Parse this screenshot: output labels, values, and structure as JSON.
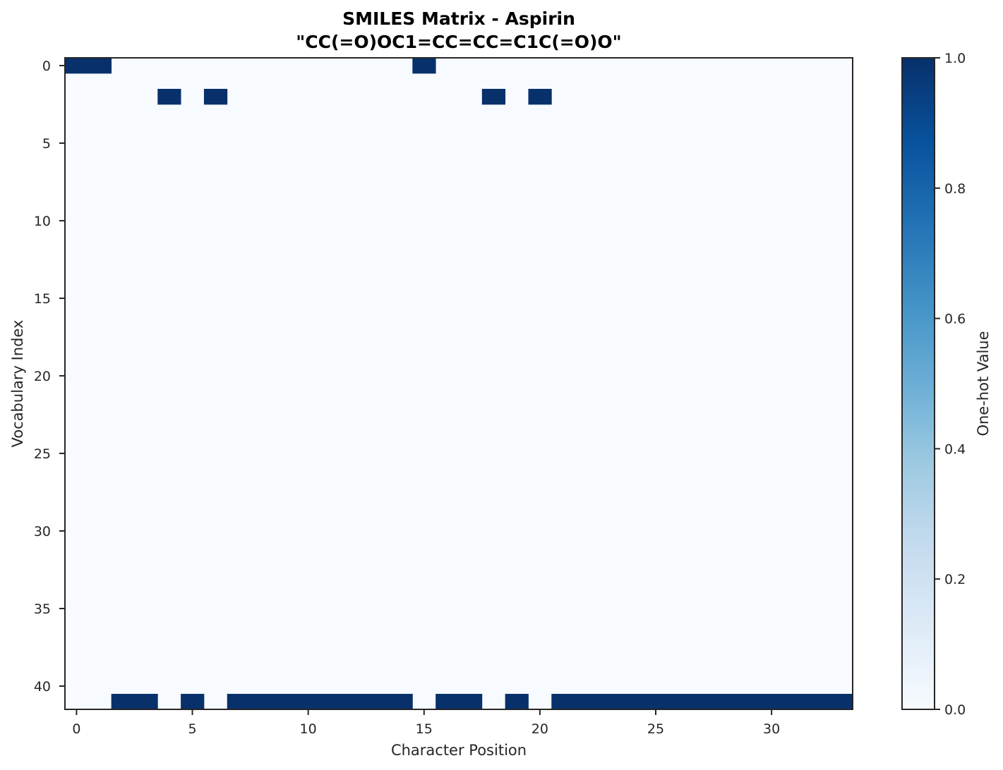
{
  "chart_data": {
    "type": "heatmap",
    "title": "SMILES Matrix - Aspirin",
    "subtitle": "\"CC(=O)OC1=CC=CC=C1C(=O)O\"",
    "xlabel": "Character Position",
    "ylabel": "Vocabulary Index",
    "colorbar_label": "One-hot Value",
    "n_cols": 34,
    "n_rows": 42,
    "xlim": [
      -0.5,
      33.5
    ],
    "ylim": [
      41.5,
      -0.5
    ],
    "x_ticks": [
      0,
      5,
      10,
      15,
      20,
      25,
      30
    ],
    "y_ticks": [
      0,
      5,
      10,
      15,
      20,
      25,
      30,
      35,
      40
    ],
    "colorbar_ticks": [
      "0.0",
      "0.2",
      "0.4",
      "0.6",
      "0.8",
      "1.0"
    ],
    "value_range": [
      0,
      1
    ],
    "colormap": "Blues",
    "low_color": "#f7fbff",
    "high_color": "#08306b",
    "cells": [
      {
        "row": 0,
        "cols": [
          0,
          1,
          15
        ]
      },
      {
        "row": 2,
        "cols": [
          4,
          6,
          18,
          20
        ]
      },
      {
        "row": 41,
        "cols": [
          2,
          3,
          5,
          7,
          8,
          9,
          10,
          11,
          12,
          13,
          14,
          16,
          17,
          19,
          21,
          22,
          23,
          24,
          25,
          26,
          27,
          28,
          29,
          30,
          31,
          32,
          33
        ]
      }
    ],
    "grid": false
  }
}
